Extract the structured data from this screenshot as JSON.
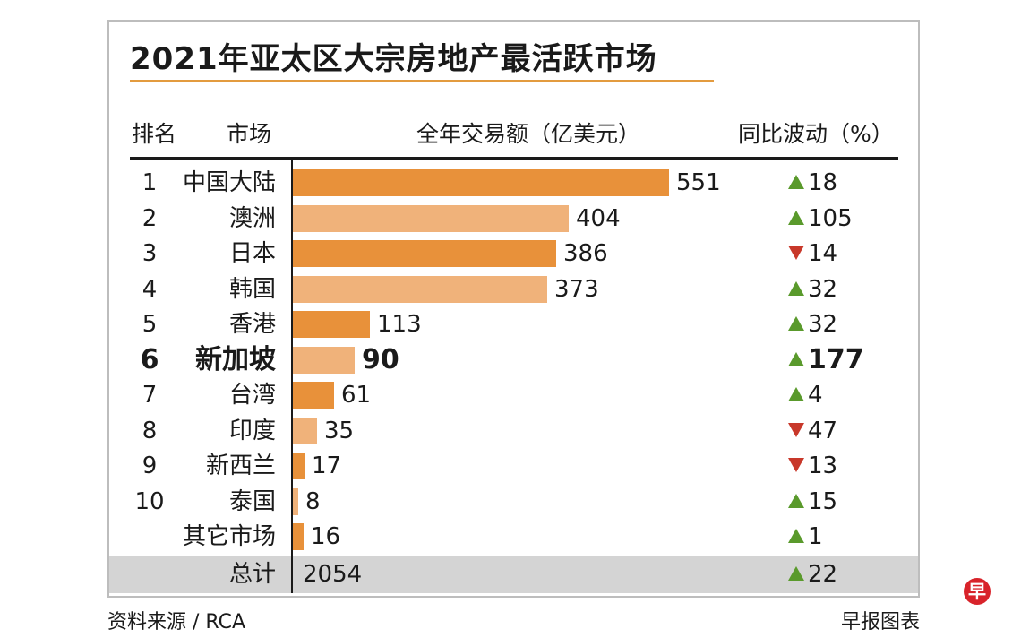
{
  "chart_data": {
    "type": "bar",
    "title": "2021年亚太区大宗房地产最活跃市场",
    "headers": {
      "rank": "排名",
      "market": "市场",
      "volume": "全年交易额（亿美元）",
      "change": "同比波动（%）"
    },
    "rows": [
      {
        "rank": "1",
        "market": "中国大陆",
        "value": 551,
        "value_label": "551",
        "direction": "up",
        "change": "18",
        "bar_color": "#e8913a"
      },
      {
        "rank": "2",
        "market": "澳洲",
        "value": 404,
        "value_label": "404",
        "direction": "up",
        "change": "105",
        "bar_color": "#f0b27a"
      },
      {
        "rank": "3",
        "market": "日本",
        "value": 386,
        "value_label": "386",
        "direction": "down",
        "change": "14",
        "bar_color": "#e8913a"
      },
      {
        "rank": "4",
        "market": "韩国",
        "value": 373,
        "value_label": "373",
        "direction": "up",
        "change": "32",
        "bar_color": "#f0b27a"
      },
      {
        "rank": "5",
        "market": "香港",
        "value": 113,
        "value_label": "113",
        "direction": "up",
        "change": "32",
        "bar_color": "#e8913a"
      },
      {
        "rank": "6",
        "market": "新加坡",
        "value": 90,
        "value_label": "90",
        "direction": "up",
        "change": "177",
        "bar_color": "#f0b27a",
        "highlight": true
      },
      {
        "rank": "7",
        "market": "台湾",
        "value": 61,
        "value_label": "61",
        "direction": "up",
        "change": "4",
        "bar_color": "#e8913a"
      },
      {
        "rank": "8",
        "market": "印度",
        "value": 35,
        "value_label": "35",
        "direction": "down",
        "change": "47",
        "bar_color": "#f0b27a"
      },
      {
        "rank": "9",
        "market": "新西兰",
        "value": 17,
        "value_label": "17",
        "direction": "down",
        "change": "13",
        "bar_color": "#e8913a"
      },
      {
        "rank": "10",
        "market": "泰国",
        "value": 8,
        "value_label": "8",
        "direction": "up",
        "change": "15",
        "bar_color": "#f0b27a"
      },
      {
        "rank": "",
        "market": "其它市场",
        "value": 16,
        "value_label": "16",
        "direction": "up",
        "change": "1",
        "bar_color": "#e8913a"
      }
    ],
    "total": {
      "market": "总计",
      "value_label": "2054",
      "direction": "up",
      "change": "22"
    },
    "xlim": [
      0,
      551
    ]
  },
  "footer": {
    "source": "资料来源 / RCA",
    "credit": "早报图表",
    "logo": "早"
  },
  "colors": {
    "up": "#5a9a2c",
    "down": "#c8382a",
    "accent": "#e39b3f",
    "total_band": "#d4d4d4"
  }
}
